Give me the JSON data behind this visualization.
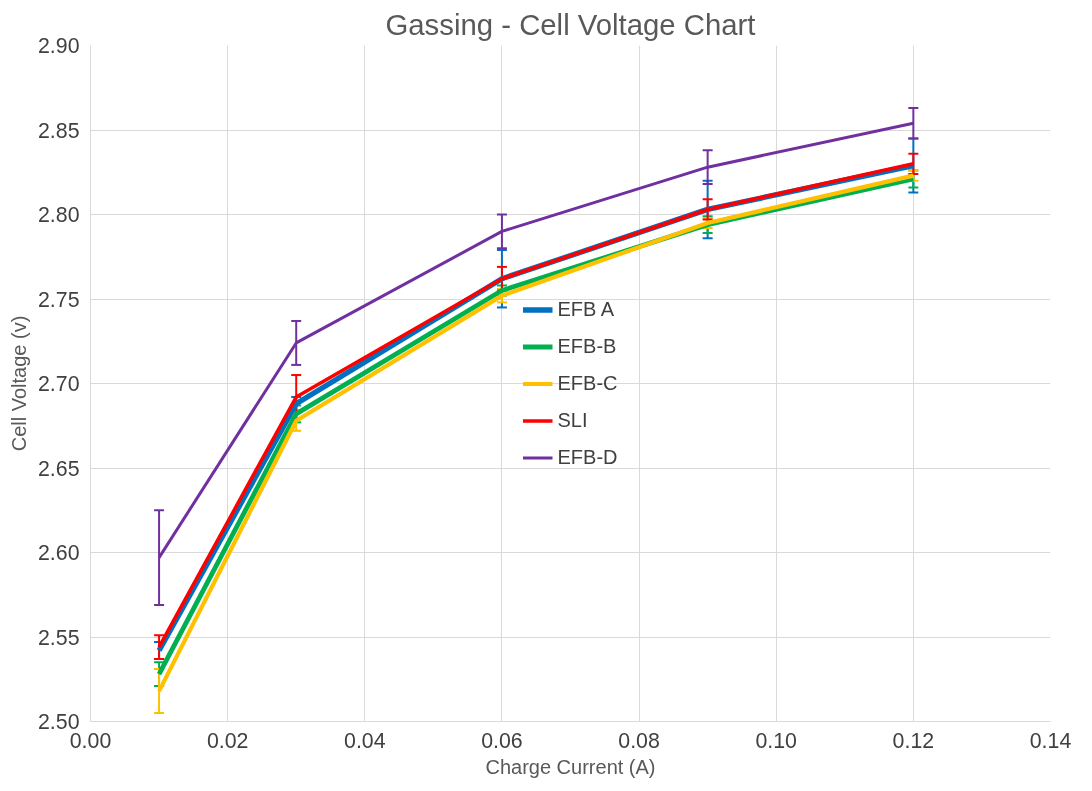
{
  "chart_data": {
    "type": "line",
    "title": "Gassing - Cell Voltage Chart",
    "xlabel": "Charge Current (A)",
    "ylabel": "Cell Voltage (v)",
    "x": [
      0.01,
      0.03,
      0.06,
      0.09,
      0.12
    ],
    "series": [
      {
        "name": "EFB A",
        "color": "#0070c0",
        "values": [
          2.542,
          2.688,
          2.762,
          2.803,
          2.829
        ],
        "errors": [
          0.005,
          0.004,
          0.017,
          0.017,
          0.016
        ]
      },
      {
        "name": "EFB-B",
        "color": "#00b050",
        "values": [
          2.528,
          2.682,
          2.755,
          2.794,
          2.821
        ],
        "errors": [
          0.007,
          0.005,
          0.003,
          0.005,
          0.005
        ]
      },
      {
        "name": "EFB-C",
        "color": "#ffc000",
        "values": [
          2.518,
          2.678,
          2.752,
          2.795,
          2.823
        ],
        "errors": [
          0.013,
          0.006,
          0.004,
          0.003,
          0.003
        ]
      },
      {
        "name": "SLI",
        "color": "#ff0000",
        "values": [
          2.544,
          2.692,
          2.762,
          2.803,
          2.83
        ],
        "errors": [
          0.007,
          0.013,
          0.007,
          0.006,
          0.006
        ]
      },
      {
        "name": "EFB-D",
        "color": "#7030a0",
        "values": [
          2.597,
          2.724,
          2.79,
          2.828,
          2.854
        ],
        "errors": [
          0.028,
          0.013,
          0.01,
          0.01,
          0.009
        ]
      }
    ],
    "xlim": [
      0,
      0.14
    ],
    "ylim": [
      2.5,
      2.9
    ],
    "xticks": [
      {
        "value": 0,
        "label": "0.00"
      },
      {
        "value": 0.02,
        "label": "0.02"
      },
      {
        "value": 0.04,
        "label": "0.04"
      },
      {
        "value": 0.06,
        "label": "0.06"
      },
      {
        "value": 0.08,
        "label": "0.08"
      },
      {
        "value": 0.1,
        "label": "0.10"
      },
      {
        "value": 0.12,
        "label": "0.12"
      },
      {
        "value": 0.14,
        "label": "0.14"
      }
    ],
    "yticks": [
      {
        "value": 2.5,
        "label": "2.50"
      },
      {
        "value": 2.55,
        "label": "2.55"
      },
      {
        "value": 2.6,
        "label": "2.60"
      },
      {
        "value": 2.65,
        "label": "2.65"
      },
      {
        "value": 2.7,
        "label": "2.70"
      },
      {
        "value": 2.75,
        "label": "2.75"
      },
      {
        "value": 2.8,
        "label": "2.80"
      },
      {
        "value": 2.85,
        "label": "2.85"
      },
      {
        "value": 2.9,
        "label": "2.90"
      }
    ],
    "grid": true,
    "legend": "center",
    "marker": "none",
    "line_style": "solid"
  }
}
